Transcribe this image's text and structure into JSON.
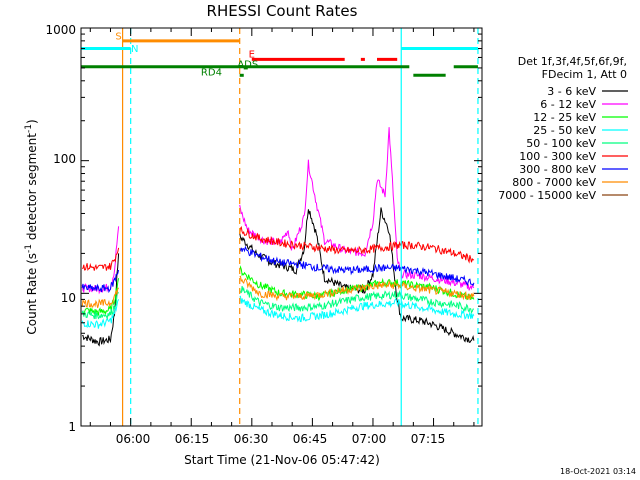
{
  "chart_data": {
    "type": "line",
    "title": "RHESSI Count Rates",
    "xlabel": "Start Time (21-Nov-06 05:47:42)",
    "ylabel_prefix": "Count Rate (s",
    "ylabel_sup1": "-1",
    "ylabel_mid": " detector segment",
    "ylabel_sup2": "-1",
    "ylabel_suffix": ")",
    "x_ticks": [
      "06:00",
      "06:15",
      "06:30",
      "06:45",
      "07:00",
      "07:15"
    ],
    "y_ticks": [
      "1",
      "10",
      "100",
      "1000"
    ],
    "y_scale": "log",
    "ylim": [
      1,
      1000
    ],
    "xlim": [
      "05:47:42",
      "07:27:00"
    ],
    "legend_header": [
      "Det 1f,3f,4f,5f,6f,9f,",
      "FDecim 1, Att 0"
    ],
    "legend_placement": "right",
    "series": [
      {
        "name": "3 - 6 keV",
        "color": "#000000",
        "segments": [
          [
            [
              "05:48",
              4.8
            ],
            [
              "05:52",
              4.3
            ],
            [
              "05:55",
              4.5
            ],
            [
              "05:56",
              7.0
            ],
            [
              "05:57",
              20.0
            ]
          ],
          [
            [
              "06:27",
              27.0
            ],
            [
              "06:31",
              20.0
            ],
            [
              "06:35",
              17.0
            ],
            [
              "06:38",
              16.0
            ],
            [
              "06:41",
              15.0
            ],
            [
              "06:43",
              22.0
            ],
            [
              "06:44",
              45.0
            ],
            [
              "06:46",
              28.0
            ],
            [
              "06:48",
              13.0
            ],
            [
              "06:53",
              11.0
            ],
            [
              "06:58",
              10.5
            ],
            [
              "07:00",
              14.0
            ],
            [
              "07:02",
              42.0
            ],
            [
              "07:04",
              30.0
            ],
            [
              "07:06",
              9.0
            ],
            [
              "07:07",
              6.5
            ],
            [
              "07:12",
              6.2
            ],
            [
              "07:15",
              5.8
            ],
            [
              "07:20",
              5.0
            ],
            [
              "07:25",
              4.4
            ]
          ]
        ]
      },
      {
        "name": "6 - 12 keV",
        "color": "#ff00ff",
        "segments": [
          [
            [
              "05:48",
              11.0
            ],
            [
              "05:52",
              10.8
            ],
            [
              "05:55",
              11.2
            ],
            [
              "05:56",
              15.0
            ],
            [
              "05:57",
              32.0
            ]
          ],
          [
            [
              "06:27",
              44.0
            ],
            [
              "06:29",
              30.0
            ],
            [
              "06:33",
              25.0
            ],
            [
              "06:37",
              24.0
            ],
            [
              "06:39",
              30.0
            ],
            [
              "06:40",
              21.0
            ],
            [
              "06:43",
              38.0
            ],
            [
              "06:44",
              95.0
            ],
            [
              "06:46",
              48.0
            ],
            [
              "06:48",
              25.0
            ],
            [
              "06:53",
              21.0
            ],
            [
              "06:58",
              20.0
            ],
            [
              "07:00",
              35.0
            ],
            [
              "07:01",
              72.0
            ],
            [
              "07:03",
              55.0
            ],
            [
              "07:04",
              175.0
            ],
            [
              "07:06",
              18.0
            ],
            [
              "07:07",
              14.0
            ],
            [
              "07:12",
              13.5
            ],
            [
              "07:18",
              12.5
            ],
            [
              "07:25",
              11.0
            ]
          ]
        ]
      },
      {
        "name": "12 - 25 keV",
        "color": "#00ff00",
        "segments": [
          [
            [
              "05:48",
              7.5
            ],
            [
              "05:52",
              7.2
            ],
            [
              "05:55",
              7.5
            ],
            [
              "05:56",
              9.0
            ],
            [
              "05:57",
              13.0
            ]
          ],
          [
            [
              "06:27",
              15.0
            ],
            [
              "06:32",
              11.5
            ],
            [
              "06:37",
              10.0
            ],
            [
              "06:42",
              9.8
            ],
            [
              "06:47",
              9.5
            ],
            [
              "06:52",
              10.5
            ],
            [
              "06:57",
              11.0
            ],
            [
              "07:02",
              12.0
            ],
            [
              "07:06",
              12.0
            ],
            [
              "07:10",
              11.5
            ],
            [
              "07:15",
              11.0
            ],
            [
              "07:20",
              10.0
            ],
            [
              "07:25",
              9.0
            ]
          ]
        ]
      },
      {
        "name": "25 - 50 keV",
        "color": "#00ffff",
        "segments": [
          [
            [
              "05:48",
              6.0
            ],
            [
              "05:52",
              5.8
            ],
            [
              "05:55",
              6.2
            ],
            [
              "05:56",
              7.0
            ],
            [
              "05:57",
              9.0
            ]
          ],
          [
            [
              "06:27",
              9.0
            ],
            [
              "06:32",
              7.5
            ],
            [
              "06:37",
              6.8
            ],
            [
              "06:42",
              6.5
            ],
            [
              "06:47",
              6.8
            ],
            [
              "06:52",
              7.3
            ],
            [
              "06:57",
              8.0
            ],
            [
              "07:02",
              8.3
            ],
            [
              "07:06",
              8.5
            ],
            [
              "07:10",
              8.0
            ],
            [
              "07:15",
              7.5
            ],
            [
              "07:20",
              7.0
            ],
            [
              "07:25",
              6.8
            ]
          ]
        ]
      },
      {
        "name": "50 - 100 keV",
        "color": "#00ff80",
        "segments": [
          [
            [
              "05:48",
              7.0
            ],
            [
              "05:52",
              6.8
            ],
            [
              "05:55",
              7.0
            ],
            [
              "05:56",
              8.0
            ],
            [
              "05:57",
              10.0
            ]
          ],
          [
            [
              "06:27",
              11.0
            ],
            [
              "06:32",
              8.5
            ],
            [
              "06:37",
              7.8
            ],
            [
              "06:42",
              7.8
            ],
            [
              "06:47",
              8.0
            ],
            [
              "06:52",
              8.6
            ],
            [
              "06:57",
              9.3
            ],
            [
              "07:02",
              9.6
            ],
            [
              "07:06",
              9.8
            ],
            [
              "07:10",
              9.2
            ],
            [
              "07:15",
              8.6
            ],
            [
              "07:20",
              8.2
            ],
            [
              "07:25",
              7.6
            ]
          ]
        ]
      },
      {
        "name": "100 - 300 keV",
        "color": "#ff0000",
        "segments": [
          [
            [
              "05:48",
              16.0
            ],
            [
              "05:52",
              15.5
            ],
            [
              "05:55",
              16.0
            ],
            [
              "05:56",
              18.0
            ],
            [
              "05:57",
              22.0
            ]
          ],
          [
            [
              "06:27",
              30.0
            ],
            [
              "06:32",
              26.0
            ],
            [
              "06:37",
              24.0
            ],
            [
              "06:42",
              23.0
            ],
            [
              "06:47",
              22.0
            ],
            [
              "06:52",
              21.0
            ],
            [
              "06:57",
              21.0
            ],
            [
              "07:02",
              22.0
            ],
            [
              "07:06",
              23.0
            ],
            [
              "07:10",
              23.0
            ],
            [
              "07:15",
              22.0
            ],
            [
              "07:20",
              20.0
            ],
            [
              "07:25",
              18.0
            ]
          ]
        ]
      },
      {
        "name": "300 - 800 keV",
        "color": "#0000ff",
        "segments": [
          [
            [
              "05:48",
              11.0
            ],
            [
              "05:52",
              10.8
            ],
            [
              "05:55",
              11.0
            ],
            [
              "05:56",
              12.5
            ],
            [
              "05:57",
              15.0
            ]
          ],
          [
            [
              "06:27",
              22.0
            ],
            [
              "06:32",
              19.0
            ],
            [
              "06:37",
              17.0
            ],
            [
              "06:42",
              16.5
            ],
            [
              "06:47",
              15.5
            ],
            [
              "06:52",
              15.0
            ],
            [
              "06:57",
              15.0
            ],
            [
              "07:02",
              15.5
            ],
            [
              "07:06",
              15.5
            ],
            [
              "07:10",
              15.0
            ],
            [
              "07:15",
              14.0
            ],
            [
              "07:20",
              13.0
            ],
            [
              "07:25",
              12.0
            ]
          ]
        ]
      },
      {
        "name": "800 - 7000 keV",
        "color": "#ff8c00",
        "segments": [
          [
            [
              "05:48",
              8.5
            ],
            [
              "05:52",
              8.3
            ],
            [
              "05:55",
              8.5
            ],
            [
              "05:56",
              9.5
            ],
            [
              "05:57",
              11.0
            ]
          ],
          [
            [
              "06:27",
              13.0
            ],
            [
              "06:32",
              10.0
            ],
            [
              "06:37",
              9.5
            ],
            [
              "06:42",
              9.5
            ],
            [
              "06:47",
              9.8
            ],
            [
              "06:52",
              10.5
            ],
            [
              "06:57",
              11.0
            ],
            [
              "07:02",
              11.5
            ],
            [
              "07:06",
              11.5
            ],
            [
              "07:10",
              11.0
            ],
            [
              "07:15",
              10.5
            ],
            [
              "07:20",
              10.0
            ],
            [
              "07:25",
              9.5
            ]
          ]
        ]
      },
      {
        "name": "7000 - 15000 keV",
        "color": "#8b4513",
        "segments": []
      }
    ],
    "time_markers": [
      {
        "time": "05:58",
        "color": "#ff8c00",
        "style": "solid"
      },
      {
        "time": "06:27",
        "color": "#ff8c00",
        "style": "dashed"
      },
      {
        "time": "06:00",
        "color": "#00ffff",
        "style": "dashed"
      },
      {
        "time": "07:07",
        "color": "#00ffff",
        "style": "solid"
      },
      {
        "time": "07:26",
        "color": "#00ffff",
        "style": "dashed"
      }
    ],
    "flag_bars": [
      {
        "color": "#00ffff",
        "value": 700,
        "spans": [
          [
            "05:47:42",
            "06:00"
          ],
          [
            "07:07",
            "07:26"
          ]
        ]
      },
      {
        "color": "#ff8c00",
        "value": 800,
        "spans": [
          [
            "05:58",
            "06:27"
          ]
        ]
      },
      {
        "color": "#ff0000",
        "value": 580,
        "spans": [
          [
            "06:30",
            "06:53"
          ],
          [
            "06:57",
            "06:58"
          ],
          [
            "07:01",
            "07:06"
          ]
        ]
      },
      {
        "color": "#008000",
        "value": 510,
        "spans": [
          [
            "05:47:42",
            "07:09"
          ],
          [
            "07:20",
            "07:26"
          ]
        ]
      },
      {
        "color": "#008000",
        "value": 440,
        "spans": [
          [
            "07:10",
            "07:18"
          ],
          [
            "06:27",
            "06:28"
          ]
        ]
      },
      {
        "color": "#008000",
        "value": 500,
        "spans": [
          [
            "06:28",
            "06:29"
          ]
        ]
      }
    ],
    "flag_labels": [
      {
        "text": "S",
        "color": "#ff8c00",
        "time": "05:57",
        "value": 820
      },
      {
        "text": "N",
        "color": "#00ffff",
        "time": "06:01",
        "value": 660
      },
      {
        "text": "E",
        "color": "#ff0000",
        "time": "06:30",
        "value": 600
      },
      {
        "text": "RD4",
        "color": "#008000",
        "time": "06:20",
        "value": 440
      },
      {
        "text": "ADS",
        "color": "#008000",
        "time": "06:29",
        "value": 505
      }
    ]
  },
  "footer": {
    "timestamp": "18-Oct-2021 03:14"
  }
}
